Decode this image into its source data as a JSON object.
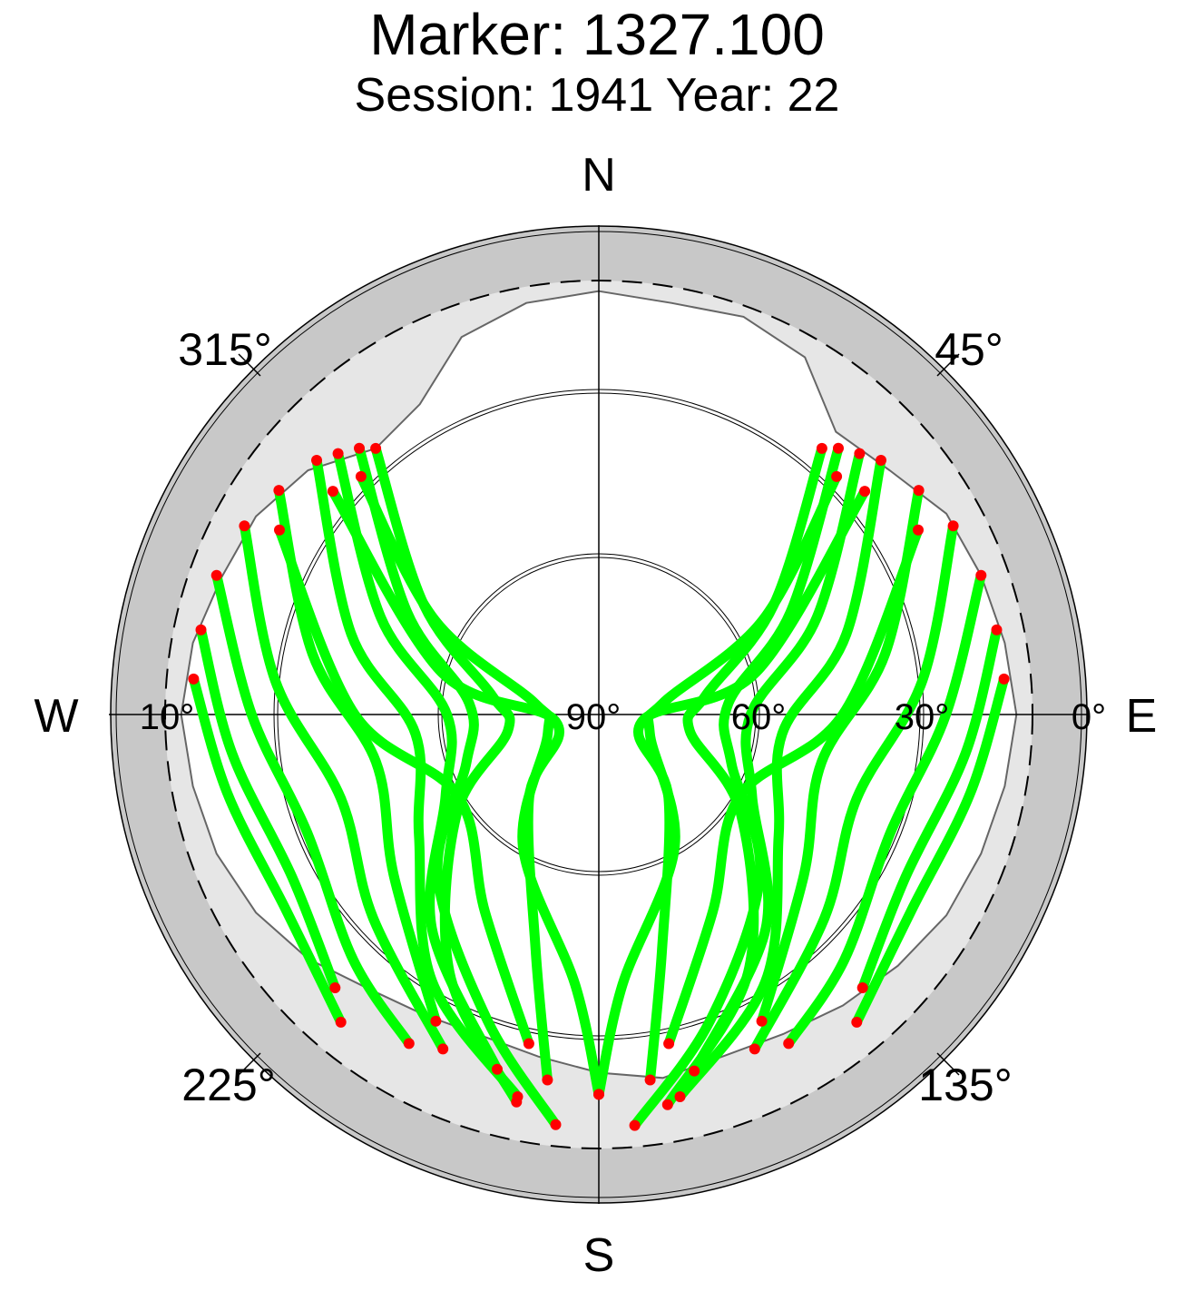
{
  "chart_data": {
    "type": "scatter",
    "subtype": "polar-skyplot",
    "title": "Marker: 1327.100",
    "subtitle": "Session: 1941 Year: 22",
    "directions": {
      "north": "N",
      "east": "E",
      "south": "S",
      "west": "W"
    },
    "azimuth_labels": [
      "45°",
      "135°",
      "225°",
      "315°"
    ],
    "elevation_labels": [
      "90°",
      "60°",
      "30°",
      "0°",
      "10°"
    ],
    "elevation_cutoff_deg": 10,
    "grid": true,
    "colors": {
      "tracks": "#00ff00",
      "track_ends": "#ff0000",
      "outer_ring": "#c8c8c8",
      "masked_sky": "#e6e6e6",
      "visible_sky": "#ffffff",
      "axes": "#000000"
    },
    "series": [
      {
        "color": "#00ff00",
        "description": "satellite tracks (azimuth/elevation)"
      },
      {
        "color": "#ff0000",
        "description": "track endpoints at mask"
      }
    ],
    "tracks_az_el": [
      [
        [
          40,
          26
        ],
        [
          58,
          52
        ],
        [
          80,
          70
        ],
        [
          100,
          73
        ],
        [
          125,
          58
        ],
        [
          150,
          35
        ],
        [
          170,
          17
        ]
      ],
      [
        [
          42,
          24
        ],
        [
          62,
          50
        ],
        [
          85,
          66
        ],
        [
          110,
          64
        ],
        [
          135,
          48
        ],
        [
          160,
          30
        ],
        [
          175,
          14
        ]
      ],
      [
        [
          45,
          22
        ],
        [
          66,
          46
        ],
        [
          90,
          62
        ],
        [
          118,
          58
        ],
        [
          142,
          40
        ],
        [
          165,
          22
        ]
      ],
      [
        [
          48,
          20
        ],
        [
          72,
          42
        ],
        [
          96,
          56
        ],
        [
          124,
          50
        ],
        [
          148,
          32
        ],
        [
          168,
          18
        ]
      ],
      [
        [
          55,
          18
        ],
        [
          78,
          36
        ],
        [
          102,
          48
        ],
        [
          128,
          42
        ],
        [
          152,
          26
        ]
      ],
      [
        [
          62,
          16
        ],
        [
          84,
          30
        ],
        [
          108,
          40
        ],
        [
          132,
          34
        ],
        [
          155,
          22
        ]
      ],
      [
        [
          70,
          15
        ],
        [
          90,
          26
        ],
        [
          112,
          32
        ],
        [
          135,
          26
        ],
        [
          150,
          20
        ]
      ],
      [
        [
          78,
          15
        ],
        [
          96,
          22
        ],
        [
          118,
          26
        ],
        [
          136,
          20
        ]
      ],
      [
        [
          85,
          15
        ],
        [
          102,
          20
        ],
        [
          122,
          22
        ],
        [
          140,
          16
        ]
      ],
      [
        [
          320,
          26
        ],
        [
          302,
          52
        ],
        [
          280,
          70
        ],
        [
          260,
          73
        ],
        [
          235,
          58
        ],
        [
          210,
          35
        ],
        [
          192,
          17
        ]
      ],
      [
        [
          318,
          24
        ],
        [
          298,
          50
        ],
        [
          275,
          66
        ],
        [
          250,
          64
        ],
        [
          225,
          48
        ],
        [
          200,
          30
        ],
        [
          186,
          14
        ]
      ],
      [
        [
          315,
          22
        ],
        [
          294,
          46
        ],
        [
          270,
          62
        ],
        [
          242,
          58
        ],
        [
          218,
          40
        ],
        [
          196,
          22
        ]
      ],
      [
        [
          312,
          20
        ],
        [
          288,
          42
        ],
        [
          264,
          56
        ],
        [
          236,
          50
        ],
        [
          212,
          32
        ],
        [
          192,
          18
        ]
      ],
      [
        [
          305,
          18
        ],
        [
          282,
          36
        ],
        [
          258,
          48
        ],
        [
          232,
          42
        ],
        [
          208,
          26
        ]
      ],
      [
        [
          298,
          16
        ],
        [
          276,
          30
        ],
        [
          252,
          40
        ],
        [
          228,
          34
        ],
        [
          205,
          22
        ]
      ],
      [
        [
          290,
          15
        ],
        [
          270,
          26
        ],
        [
          248,
          32
        ],
        [
          225,
          26
        ],
        [
          210,
          20
        ]
      ],
      [
        [
          282,
          15
        ],
        [
          264,
          22
        ],
        [
          242,
          26
        ],
        [
          224,
          20
        ]
      ],
      [
        [
          275,
          15
        ],
        [
          258,
          20
        ],
        [
          238,
          22
        ],
        [
          220,
          16
        ]
      ],
      [
        [
          45,
          28
        ],
        [
          60,
          55
        ],
        [
          80,
          78
        ],
        [
          110,
          80
        ],
        [
          150,
          62
        ],
        [
          175,
          40
        ],
        [
          180,
          20
        ]
      ],
      [
        [
          315,
          28
        ],
        [
          300,
          55
        ],
        [
          280,
          78
        ],
        [
          250,
          80
        ],
        [
          210,
          62
        ],
        [
          185,
          40
        ],
        [
          180,
          20
        ]
      ],
      [
        [
          50,
          26
        ],
        [
          75,
          60
        ],
        [
          100,
          82
        ],
        [
          140,
          70
        ],
        [
          165,
          45
        ],
        [
          172,
          22
        ]
      ],
      [
        [
          310,
          26
        ],
        [
          285,
          60
        ],
        [
          260,
          82
        ],
        [
          220,
          70
        ],
        [
          195,
          45
        ],
        [
          188,
          22
        ]
      ],
      [
        [
          60,
          22
        ],
        [
          90,
          45
        ],
        [
          120,
          60
        ],
        [
          150,
          48
        ],
        [
          168,
          28
        ]
      ],
      [
        [
          300,
          22
        ],
        [
          270,
          45
        ],
        [
          240,
          60
        ],
        [
          210,
          48
        ],
        [
          192,
          28
        ]
      ]
    ],
    "mask_az_el": [
      [
        0,
        12
      ],
      [
        10,
        13
      ],
      [
        20,
        12
      ],
      [
        30,
        14
      ],
      [
        40,
        22
      ],
      [
        50,
        20
      ],
      [
        60,
        16
      ],
      [
        70,
        15
      ],
      [
        80,
        14
      ],
      [
        90,
        13
      ],
      [
        100,
        14
      ],
      [
        110,
        15
      ],
      [
        120,
        16
      ],
      [
        130,
        18
      ],
      [
        140,
        20
      ],
      [
        150,
        22
      ],
      [
        160,
        23
      ],
      [
        170,
        22
      ],
      [
        180,
        24
      ],
      [
        190,
        26
      ],
      [
        200,
        27
      ],
      [
        210,
        26
      ],
      [
        220,
        24
      ],
      [
        230,
        20
      ],
      [
        240,
        17
      ],
      [
        250,
        15
      ],
      [
        260,
        14
      ],
      [
        270,
        13
      ],
      [
        280,
        14
      ],
      [
        290,
        16
      ],
      [
        300,
        17
      ],
      [
        310,
        20
      ],
      [
        320,
        26
      ],
      [
        330,
        24
      ],
      [
        340,
        16
      ],
      [
        350,
        13
      ],
      [
        360,
        12
      ]
    ]
  }
}
